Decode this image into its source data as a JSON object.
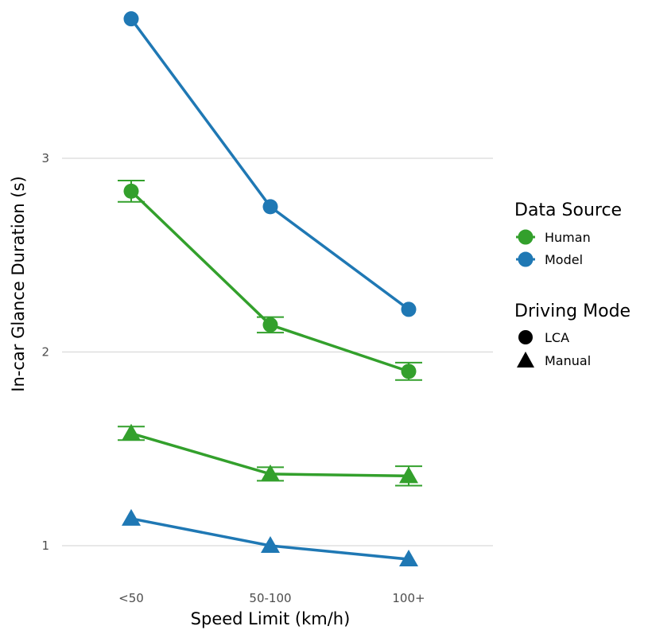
{
  "chart_data": {
    "type": "line",
    "title": "",
    "xlabel": "Speed Limit (km/h)",
    "ylabel": "In-car Glance Duration (s)",
    "categories": [
      "<50",
      "50-100",
      "100+"
    ],
    "yticks": [
      1,
      2,
      3
    ],
    "ylim": [
      0.9,
      3.75
    ],
    "grid": "horizontal major",
    "legend_position": "right",
    "legends": [
      {
        "title": "Data Source",
        "entries": [
          {
            "label": "Human",
            "color": "#33a02c"
          },
          {
            "label": "Model",
            "color": "#1f78b4"
          }
        ]
      },
      {
        "title": "Driving Mode",
        "entries": [
          {
            "label": "LCA",
            "shape": "circle"
          },
          {
            "label": "Manual",
            "shape": "triangle"
          }
        ]
      }
    ],
    "series": [
      {
        "source": "Human",
        "mode": "LCA",
        "color": "#33a02c",
        "shape": "circle",
        "values": [
          2.83,
          2.14,
          1.9
        ],
        "error": [
          0.055,
          0.04,
          0.045
        ]
      },
      {
        "source": "Model",
        "mode": "LCA",
        "color": "#1f78b4",
        "shape": "circle",
        "values": [
          3.72,
          2.75,
          2.22
        ],
        "error": null
      },
      {
        "source": "Human",
        "mode": "Manual",
        "color": "#33a02c",
        "shape": "triangle",
        "values": [
          1.58,
          1.37,
          1.36
        ],
        "error": [
          0.035,
          0.035,
          0.05
        ]
      },
      {
        "source": "Model",
        "mode": "Manual",
        "color": "#1f78b4",
        "shape": "triangle",
        "values": [
          1.14,
          1.0,
          0.93
        ],
        "error": null
      }
    ]
  }
}
